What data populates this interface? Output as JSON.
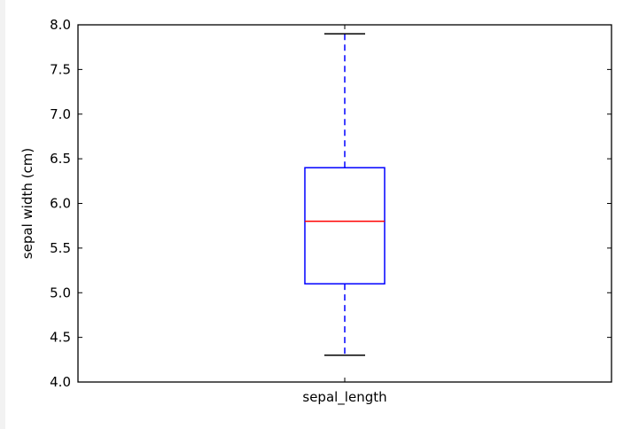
{
  "chart_data": {
    "type": "box",
    "categories": [
      "sepal_length"
    ],
    "series": [
      {
        "category": "sepal_length",
        "whisker_low": 4.3,
        "q1": 5.1,
        "median": 5.8,
        "q3": 6.4,
        "whisker_high": 7.9
      }
    ],
    "title": "",
    "xlabel": "",
    "ylabel": "sepal width (cm)",
    "ylim": [
      4.0,
      8.0
    ],
    "yticks": [
      4.0,
      4.5,
      5.0,
      5.5,
      6.0,
      6.5,
      7.0,
      7.5,
      8.0
    ],
    "ytick_labels": [
      "4.0",
      "4.5",
      "5.0",
      "5.5",
      "6.0",
      "6.5",
      "7.0",
      "7.5",
      "8.0"
    ],
    "grid": false,
    "colors": {
      "box": "#0000ff",
      "whisker": "#0000ff",
      "cap": "#000000",
      "median": "#ff0000",
      "frame": "#000000"
    }
  }
}
